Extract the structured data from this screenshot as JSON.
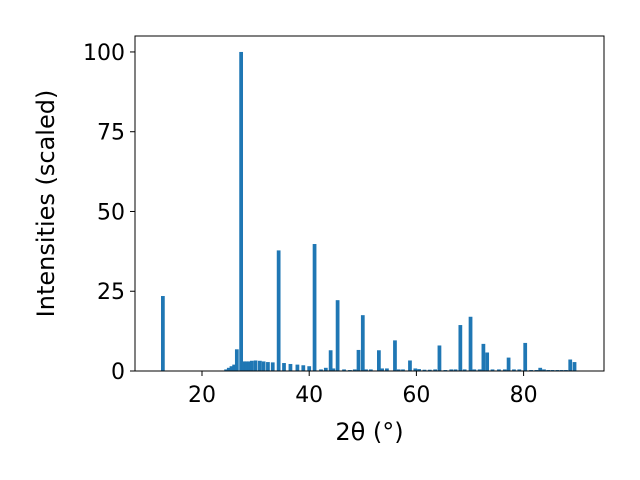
{
  "chart_data": {
    "type": "bar",
    "title": "",
    "xlabel": "2θ (°)",
    "ylabel": "Intensities (scaled)",
    "xlim": [
      7.5,
      95.0
    ],
    "ylim": [
      0,
      105
    ],
    "xticks": [
      20,
      40,
      60,
      80
    ],
    "xtick_labels": [
      "20",
      "40",
      "60",
      "80"
    ],
    "yticks": [
      0,
      25,
      50,
      75,
      100
    ],
    "ytick_labels": [
      "0",
      "25",
      "50",
      "75",
      "100"
    ],
    "grid": false,
    "legend": "none",
    "bar_width": 0.7,
    "bar_color": "#1f77b4",
    "x": [
      12.7,
      24.5,
      25.0,
      25.5,
      26.0,
      26.5,
      27.3,
      27.8,
      28.3,
      28.8,
      29.3,
      30.0,
      30.8,
      31.5,
      32.3,
      33.2,
      34.3,
      35.3,
      36.5,
      37.8,
      38.9,
      40.0,
      41.0,
      42.2,
      43.1,
      44.0,
      44.5,
      45.3,
      46.5,
      47.6,
      48.5,
      49.2,
      50.0,
      50.6,
      51.5,
      53.0,
      53.6,
      54.5,
      56.0,
      56.7,
      57.5,
      58.8,
      59.8,
      60.5,
      61.5,
      62.5,
      63.5,
      64.3,
      65.4,
      66.5,
      67.3,
      68.2,
      69.0,
      70.1,
      70.8,
      71.8,
      72.5,
      73.2,
      74.2,
      75.4,
      76.5,
      77.2,
      78.2,
      79.2,
      80.3,
      81.4,
      82.4,
      83.1,
      83.8,
      84.6,
      85.4,
      86.3,
      87.1,
      87.9,
      88.7,
      89.5
    ],
    "values": [
      23.5,
      0.5,
      1.0,
      1.5,
      2.0,
      6.8,
      100,
      3.0,
      3.0,
      3.0,
      3.2,
      3.3,
      3.2,
      3.0,
      2.8,
      2.7,
      37.8,
      2.5,
      2.2,
      2.0,
      1.8,
      1.5,
      39.8,
      0.5,
      1.0,
      6.5,
      0.8,
      22.2,
      0.5,
      0.3,
      0.5,
      6.6,
      17.5,
      0.5,
      0.5,
      6.5,
      0.8,
      0.8,
      9.6,
      0.5,
      0.5,
      3.3,
      0.8,
      0.6,
      0.4,
      0.4,
      0.5,
      8.0,
      0.3,
      0.5,
      0.5,
      14.4,
      0.5,
      17.0,
      0.5,
      0.5,
      8.5,
      5.8,
      0.5,
      0.5,
      0.5,
      4.2,
      0.5,
      0.5,
      8.8,
      0.3,
      0.3,
      1.0,
      0.5,
      0.3,
      0.3,
      0.3,
      0.3,
      0.3,
      3.6,
      2.8
    ]
  }
}
